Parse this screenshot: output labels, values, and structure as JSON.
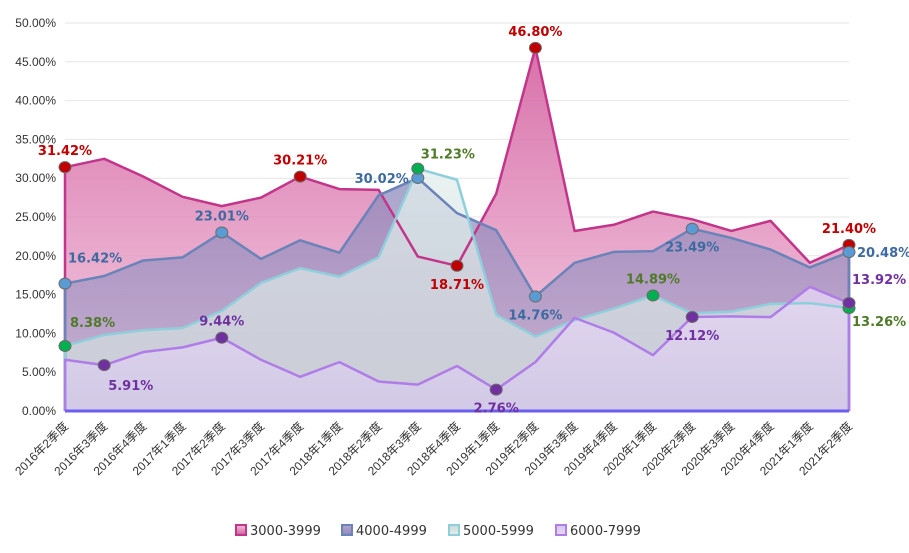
{
  "chart_data": {
    "type": "area",
    "title": "",
    "xlabel": "",
    "ylabel": "",
    "ylim": [
      0,
      50
    ],
    "y_ticks": [
      "0.00%",
      "5.00%",
      "10.00%",
      "15.00%",
      "20.00%",
      "25.00%",
      "30.00%",
      "35.00%",
      "40.00%",
      "45.00%",
      "50.00%"
    ],
    "y_tick_values": [
      0,
      5,
      10,
      15,
      20,
      25,
      30,
      35,
      40,
      45,
      50
    ],
    "grid": true,
    "legend_position": "bottom-center",
    "categories": [
      "2016年2季度",
      "2016年3季度",
      "2016年4季度",
      "2017年1季度",
      "2017年2季度",
      "2017年3季度",
      "2017年4季度",
      "2018年1季度",
      "2018年2季度",
      "2018年3季度",
      "2018年4季度",
      "2019年1季度",
      "2019年2季度",
      "2019年3季度",
      "2019年4季度",
      "2020年1季度",
      "2020年2季度",
      "2020年3季度",
      "2020年4季度",
      "2021年1季度",
      "2021年2季度"
    ],
    "series": [
      {
        "name": "3000-3999",
        "color": "#c2358a",
        "fill_top": "#d460a0",
        "fill_bottom": "#f0c0da",
        "marker_color": "#c00000",
        "label_color": "#c00000",
        "values": [
          31.42,
          32.5,
          30.2,
          27.6,
          26.4,
          27.5,
          30.21,
          28.6,
          28.5,
          19.9,
          18.71,
          28.0,
          46.8,
          23.2,
          24.0,
          25.7,
          24.7,
          23.2,
          24.5,
          19.1,
          21.4
        ],
        "labeled_points": [
          {
            "index": 0,
            "text": "31.42%",
            "pos": "above"
          },
          {
            "index": 6,
            "text": "30.21%",
            "pos": "above"
          },
          {
            "index": 10,
            "text": "18.71%",
            "pos": "below"
          },
          {
            "index": 12,
            "text": "46.80%",
            "pos": "above"
          },
          {
            "index": 20,
            "text": "21.40%",
            "pos": "above"
          }
        ]
      },
      {
        "name": "4000-4999",
        "color": "#6a83b8",
        "fill_top": "#8b88bb",
        "fill_bottom": "#b8a6cc",
        "marker_color": "#5b9bd5",
        "label_color": "#3d6aa0",
        "values": [
          16.42,
          17.4,
          19.4,
          19.8,
          23.01,
          19.6,
          22.0,
          20.4,
          27.8,
          30.02,
          25.5,
          23.3,
          14.76,
          19.1,
          20.5,
          20.6,
          23.49,
          22.3,
          20.8,
          18.5,
          20.48
        ],
        "labeled_points": [
          {
            "index": 0,
            "text": "16.42%",
            "pos": "above-right"
          },
          {
            "index": 4,
            "text": "23.01%",
            "pos": "above"
          },
          {
            "index": 9,
            "text": "30.02%",
            "pos": "left"
          },
          {
            "index": 12,
            "text": "14.76%",
            "pos": "below"
          },
          {
            "index": 16,
            "text": "23.49%",
            "pos": "below"
          },
          {
            "index": 20,
            "text": "20.48%",
            "pos": "right"
          }
        ]
      },
      {
        "name": "5000-5999",
        "color": "#8fcfdc",
        "fill_top": "#e3efee",
        "fill_bottom": "#cbd8d8",
        "marker_color": "#00b050",
        "label_color": "#4f7a28",
        "values": [
          8.38,
          9.8,
          10.4,
          10.7,
          12.9,
          16.5,
          18.4,
          17.3,
          19.8,
          31.23,
          29.8,
          12.4,
          9.6,
          11.7,
          13.2,
          14.89,
          12.6,
          12.8,
          13.8,
          13.9,
          13.26
        ],
        "labeled_points": [
          {
            "index": 0,
            "text": "8.38%",
            "pos": "above-right"
          },
          {
            "index": 9,
            "text": "31.23%",
            "pos": "above-right"
          },
          {
            "index": 15,
            "text": "14.89%",
            "pos": "above"
          },
          {
            "index": 20,
            "text": "13.26%",
            "pos": "below-right"
          }
        ]
      },
      {
        "name": "6000-7999",
        "color": "#b07ce8",
        "fill_top": "#e8d8f5",
        "fill_bottom": "#d4c8ec",
        "marker_color": "#7030a0",
        "label_color": "#7030a0",
        "values": [
          6.6,
          5.91,
          7.6,
          8.2,
          9.44,
          6.6,
          4.4,
          6.3,
          3.8,
          3.4,
          5.8,
          2.76,
          6.3,
          12.0,
          10.1,
          7.2,
          12.12,
          12.2,
          12.1,
          16.0,
          13.92
        ],
        "labeled_points": [
          {
            "index": 1,
            "text": "5.91%",
            "pos": "below-right"
          },
          {
            "index": 4,
            "text": "9.44%",
            "pos": "above"
          },
          {
            "index": 11,
            "text": "2.76%",
            "pos": "below"
          },
          {
            "index": 16,
            "text": "12.12%",
            "pos": "below"
          },
          {
            "index": 20,
            "text": "13.92%",
            "pos": "above-right"
          }
        ]
      }
    ]
  }
}
